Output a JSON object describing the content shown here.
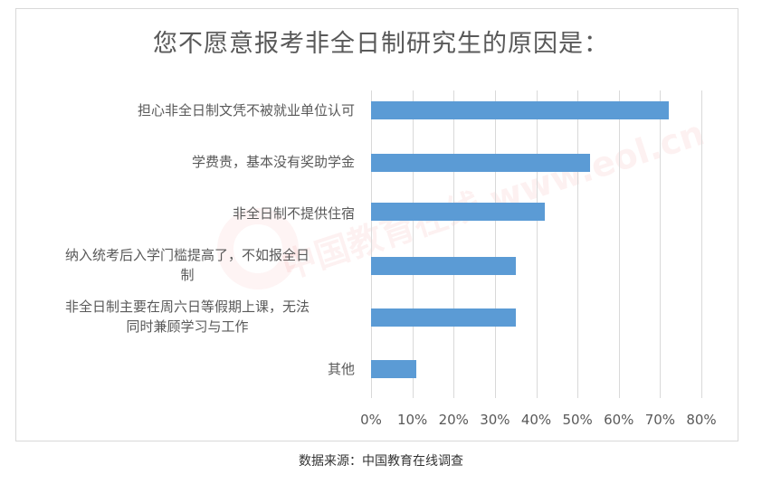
{
  "chart_data": {
    "type": "bar",
    "orientation": "horizontal",
    "title": "您不愿意报考非全日制研究生的原因是：",
    "categories": [
      "担心非全日制文凭不被就业单位认可",
      "学费贵，基本没有奖助学金",
      "非全日制不提供住宿",
      "纳入统考后入学门槛提高了，不如报全日制",
      "非全日制主要在周六日等假期上课，无法同时兼顾学习与工作",
      "其他"
    ],
    "values": [
      72,
      53,
      42,
      35,
      35,
      11
    ],
    "unit": "%",
    "xlabel": "",
    "ylabel": "",
    "xlim": [
      0,
      80
    ],
    "xticks": [
      "0%",
      "10%",
      "20%",
      "30%",
      "40%",
      "50%",
      "60%",
      "70%",
      "80%"
    ],
    "grid": true,
    "legend": null,
    "bar_color": "#5b9bd5"
  },
  "labels": {
    "cat0": "担心非全日制文凭不被就业单位认可",
    "cat1": "学费贵，基本没有奖助学金",
    "cat2": "非全日制不提供住宿",
    "cat3_line1": "纳入统考后入学门槛提高了，不如报全日",
    "cat3_line2": "制",
    "cat4_line1": "非全日制主要在周六日等假期上课，无法",
    "cat4_line2": "同时兼顾学习与工作",
    "cat5": "其他"
  },
  "source": "数据来源：中国教育在线调查",
  "watermark": "中国教育在线 www.eol.cn"
}
